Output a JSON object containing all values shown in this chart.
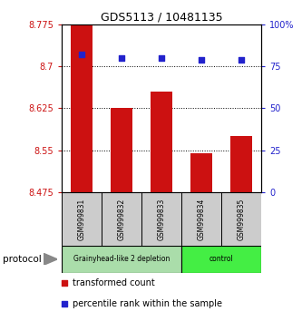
{
  "title": "GDS5113 / 10481135",
  "samples": [
    "GSM999831",
    "GSM999832",
    "GSM999833",
    "GSM999834",
    "GSM999835"
  ],
  "bar_values": [
    8.775,
    8.625,
    8.655,
    8.545,
    8.575
  ],
  "percentile_values": [
    82,
    80,
    80,
    79,
    79
  ],
  "ylim_left": [
    8.475,
    8.775
  ],
  "ylim_right": [
    0,
    100
  ],
  "yticks_left": [
    8.475,
    8.55,
    8.625,
    8.7,
    8.775
  ],
  "ytick_labels_left": [
    "8.475",
    "8.55",
    "8.625",
    "8.7",
    "8.775"
  ],
  "yticks_right": [
    0,
    25,
    50,
    75,
    100
  ],
  "ytick_labels_right": [
    "0",
    "25",
    "50",
    "75",
    "100%"
  ],
  "bar_color": "#cc1111",
  "percentile_color": "#2222cc",
  "groups": [
    {
      "label": "Grainyhead-like 2 depletion",
      "samples_idx": [
        0,
        1,
        2
      ],
      "color": "#aaddaa"
    },
    {
      "label": "control",
      "samples_idx": [
        3,
        4
      ],
      "color": "#44ee44"
    }
  ],
  "protocol_label": "protocol",
  "legend_items": [
    {
      "color": "#cc1111",
      "label": "transformed count"
    },
    {
      "color": "#2222cc",
      "label": "percentile rank within the sample"
    }
  ],
  "grid_lines": [
    8.55,
    8.625,
    8.7
  ],
  "bar_base": 8.475,
  "bar_width": 0.55,
  "sample_box_color": "#cccccc",
  "title_fontsize": 9,
  "tick_fontsize": 7,
  "legend_fontsize": 7
}
